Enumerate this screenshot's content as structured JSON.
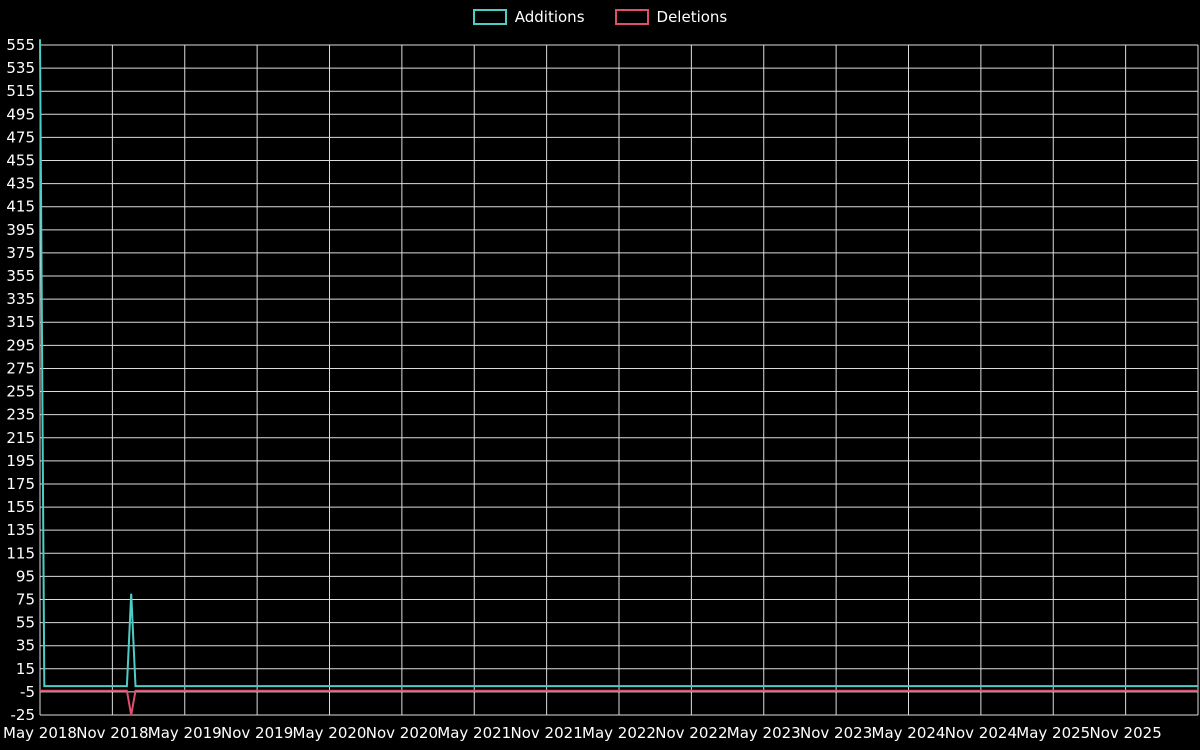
{
  "page": {
    "background": "#000000",
    "text_color": "#ffffff",
    "grid_color": "#dcdcdc"
  },
  "chart_data": {
    "type": "line",
    "title": "",
    "xlabel": "",
    "ylabel": "",
    "legend_position": "top-center",
    "grid": true,
    "x_domain": [
      2018.33,
      2026.33
    ],
    "y_min": -25,
    "y_max": 555,
    "y_ticks": [
      555,
      535,
      515,
      495,
      475,
      455,
      435,
      415,
      395,
      375,
      355,
      335,
      315,
      295,
      275,
      255,
      235,
      215,
      195,
      175,
      155,
      135,
      115,
      95,
      75,
      55,
      35,
      15,
      -5,
      -25
    ],
    "x_ticks": [
      {
        "x": 2018.33,
        "label": "May 2018"
      },
      {
        "x": 2018.83,
        "label": "Nov 2018"
      },
      {
        "x": 2019.33,
        "label": "May 2019"
      },
      {
        "x": 2019.83,
        "label": "Nov 2019"
      },
      {
        "x": 2020.33,
        "label": "May 2020"
      },
      {
        "x": 2020.83,
        "label": "Nov 2020"
      },
      {
        "x": 2021.33,
        "label": "May 2021"
      },
      {
        "x": 2021.83,
        "label": "Nov 2021"
      },
      {
        "x": 2022.33,
        "label": "May 2022"
      },
      {
        "x": 2022.83,
        "label": "Nov 2022"
      },
      {
        "x": 2023.33,
        "label": "May 2023"
      },
      {
        "x": 2023.83,
        "label": "Nov 2023"
      },
      {
        "x": 2024.33,
        "label": "May 2024"
      },
      {
        "x": 2024.83,
        "label": "Nov 2024"
      },
      {
        "x": 2025.33,
        "label": "May 2025"
      },
      {
        "x": 2025.83,
        "label": "Nov 2025"
      }
    ],
    "series": [
      {
        "name": "Additions",
        "color": "#4ecdc7",
        "points": [
          [
            2018.33,
            560
          ],
          [
            2018.36,
            0
          ],
          [
            2018.93,
            0
          ],
          [
            2018.96,
            80
          ],
          [
            2018.99,
            0
          ],
          [
            2026.33,
            0
          ]
        ]
      },
      {
        "name": "Deletions",
        "color": "#e0506e",
        "points": [
          [
            2018.33,
            -4
          ],
          [
            2018.93,
            -4
          ],
          [
            2018.96,
            -25
          ],
          [
            2018.99,
            -4
          ],
          [
            2026.33,
            -4
          ]
        ]
      }
    ]
  }
}
